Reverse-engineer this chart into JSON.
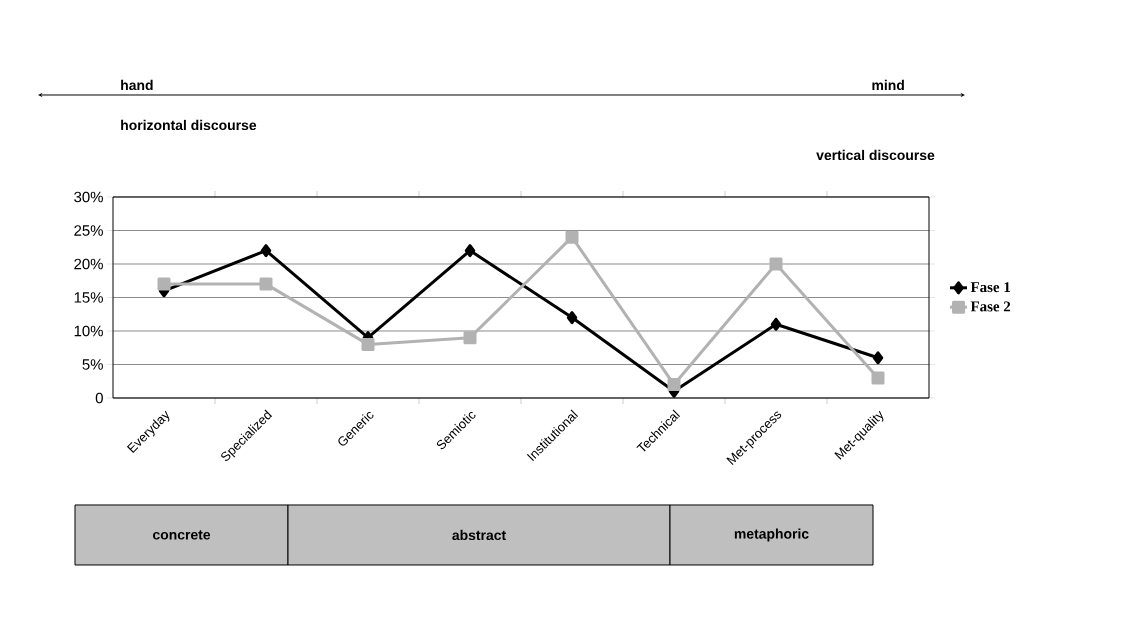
{
  "chart_data": {
    "type": "line",
    "categories": [
      "Everyday",
      "Specialized",
      "Generic",
      "Semiotic",
      "Institutional",
      "Technical",
      "Met-process",
      "Met-quality"
    ],
    "series": [
      {
        "name": "Fase 1",
        "color": "#000000",
        "marker": "diamond",
        "values": [
          16,
          22,
          9,
          22,
          12,
          1,
          11,
          6
        ]
      },
      {
        "name": "Fase 2",
        "color": "#b2b2b2",
        "marker": "square",
        "values": [
          17,
          17,
          8,
          9,
          24,
          2,
          20,
          3
        ]
      }
    ],
    "ylim": [
      0,
      30
    ],
    "yticks": [
      0,
      {
        "value": 5,
        "label": "5%"
      },
      {
        "value": 10,
        "label": "10%"
      },
      {
        "value": 15,
        "label": "15%"
      },
      {
        "value": 20,
        "label": "20%"
      },
      {
        "value": 25,
        "label": "25%"
      },
      {
        "value": 30,
        "label": "30%"
      }
    ],
    "grid": "y",
    "legend": "right",
    "line_style": "solid",
    "annotations": [
      "hand",
      "mind",
      "horizontal discourse",
      "vertical discourse",
      "concrete",
      "abstract",
      "metaphoric"
    ]
  }
}
